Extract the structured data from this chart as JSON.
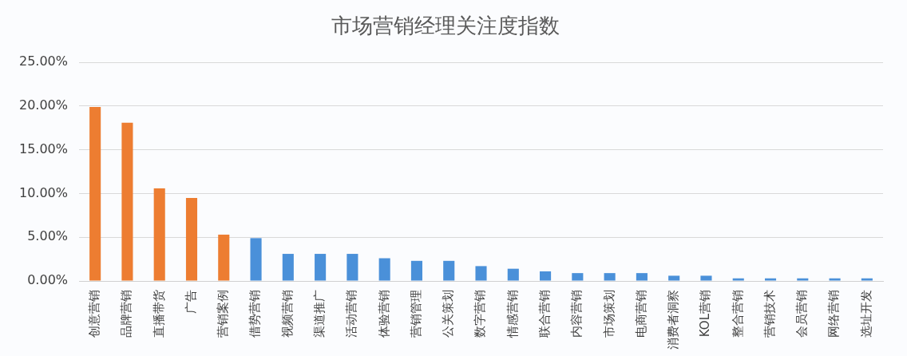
{
  "chart_data": {
    "type": "bar",
    "title": "市场营销经理关注度指数",
    "categories": [
      "创意营销",
      "品牌营销",
      "直播带货",
      "广告",
      "营销案例",
      "借势营销",
      "视频营销",
      "渠道推广",
      "活动营销",
      "体验营销",
      "营销管理",
      "公关策划",
      "数字营销",
      "情感营销",
      "联合营销",
      "内容营销",
      "市场策划",
      "电商营销",
      "消费者洞察",
      "KOL营销",
      "整合营销",
      "营销技术",
      "会员营销",
      "网络营销",
      "选址开发"
    ],
    "values": [
      19.9,
      18.1,
      10.6,
      9.5,
      5.3,
      4.9,
      3.1,
      3.1,
      3.1,
      2.6,
      2.3,
      2.3,
      1.7,
      1.4,
      1.1,
      0.9,
      0.9,
      0.9,
      0.6,
      0.6,
      0.3,
      0.3,
      0.3,
      0.3,
      0.3
    ],
    "colors": [
      "#ed7d31",
      "#ed7d31",
      "#ed7d31",
      "#ed7d31",
      "#ed7d31",
      "#4a90d9",
      "#4a90d9",
      "#4a90d9",
      "#4a90d9",
      "#4a90d9",
      "#4a90d9",
      "#4a90d9",
      "#4a90d9",
      "#4a90d9",
      "#4a90d9",
      "#4a90d9",
      "#4a90d9",
      "#4a90d9",
      "#4a90d9",
      "#4a90d9",
      "#4a90d9",
      "#4a90d9",
      "#4a90d9",
      "#4a90d9",
      "#4a90d9"
    ],
    "ylim": [
      0,
      25
    ],
    "yticks": [
      {
        "value": 0,
        "label": "0.00%"
      },
      {
        "value": 5,
        "label": "5.00%"
      },
      {
        "value": 10,
        "label": "10.00%"
      },
      {
        "value": 15,
        "label": "15.00%"
      },
      {
        "value": 20,
        "label": "20.00%"
      },
      {
        "value": 25,
        "label": "25.00%"
      }
    ],
    "grid": "y",
    "legend": false
  }
}
